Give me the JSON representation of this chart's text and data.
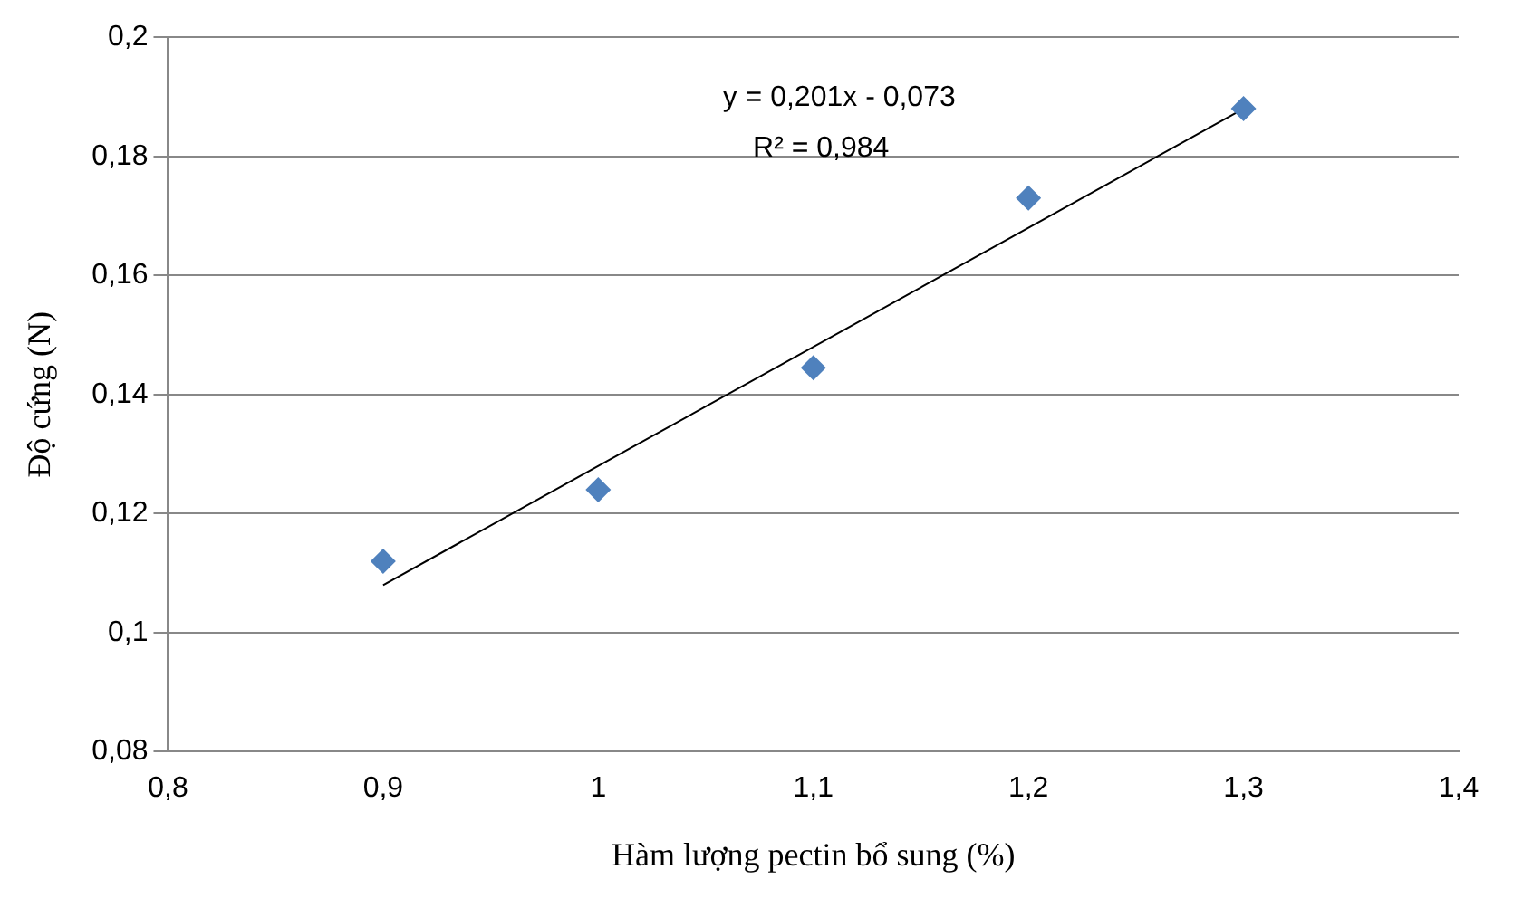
{
  "chart_data": {
    "type": "scatter",
    "xlabel": "Hàm lượng pectin bổ sung (%)",
    "ylabel": "Độ cứng (N)",
    "x": [
      0.9,
      1,
      1.1,
      1.2,
      1.3
    ],
    "series": [
      {
        "color": "#4f81bd",
        "values": [
          0.112,
          0.124,
          0.1445,
          0.173,
          0.188
        ],
        "marker": "diamond"
      },
      {
        "type": "line",
        "color": "#000000",
        "x": [
          0.9,
          1.3
        ],
        "values": [
          0.108,
          0.188
        ],
        "marker": "none"
      }
    ],
    "annotations": [
      "y = 0,201x - 0,073",
      "R² = 0,984"
    ],
    "xlim": [
      0.8,
      1.4
    ],
    "xticks": [
      {
        "value": 0.8,
        "label": "0,8"
      },
      {
        "value": 0.9,
        "label": "0,9"
      },
      {
        "value": 1,
        "label": "1"
      },
      {
        "value": 1.1,
        "label": "1,1"
      },
      {
        "value": 1.2,
        "label": "1,2"
      },
      {
        "value": 1.3,
        "label": "1,3"
      },
      {
        "value": 1.4,
        "label": "1,4"
      }
    ],
    "ylim": [
      0.08,
      0.2
    ],
    "yticks": [
      {
        "value": 0.08,
        "label": "0,08"
      },
      {
        "value": 0.1,
        "label": "0,1"
      },
      {
        "value": 0.12,
        "label": "0,12"
      },
      {
        "value": 0.14,
        "label": "0,14"
      },
      {
        "value": 0.16,
        "label": "0,16"
      },
      {
        "value": 0.18,
        "label": "0,18"
      },
      {
        "value": 0.2,
        "label": "0,2"
      }
    ],
    "grid": "y",
    "legend": false
  }
}
